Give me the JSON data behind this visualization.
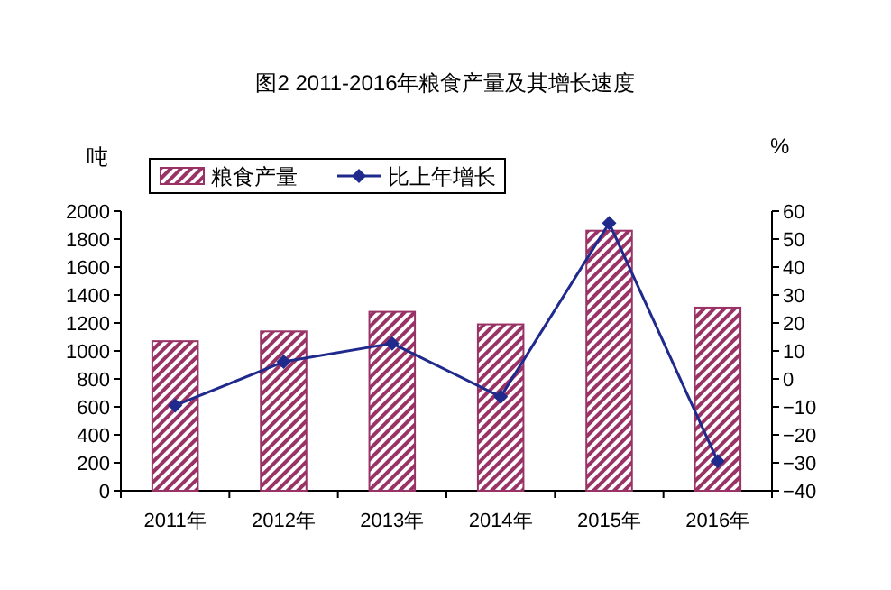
{
  "chart_data": {
    "type": "bar",
    "title": "图2 2011-2016年粮食产量及其增长速度",
    "ylabel": "吨",
    "y2label": "%",
    "categories": [
      "2011年",
      "2012年",
      "2013年",
      "2014年",
      "2015年",
      "2016年"
    ],
    "series": [
      {
        "name": "粮食产量",
        "color": "#993366",
        "values": [
          1070,
          1140,
          1280,
          1190,
          1860,
          1310
        ]
      },
      {
        "name": "比上年增长",
        "type": "line",
        "axis": "y2",
        "color": "#1f2a8c",
        "values": [
          -9.5,
          6.1,
          12.7,
          -6.4,
          55.7,
          -29.4
        ]
      }
    ],
    "ylim": [
      0,
      2000
    ],
    "yticks": [
      0,
      200,
      400,
      600,
      800,
      1000,
      1200,
      1400,
      1600,
      1800,
      2000
    ],
    "y2lim": [
      -40,
      60
    ],
    "y2ticks": [
      -40,
      -30,
      -20,
      -10,
      0,
      10,
      20,
      30,
      40,
      50,
      60
    ],
    "legend": "top",
    "marker": "diamond",
    "grid": false
  }
}
